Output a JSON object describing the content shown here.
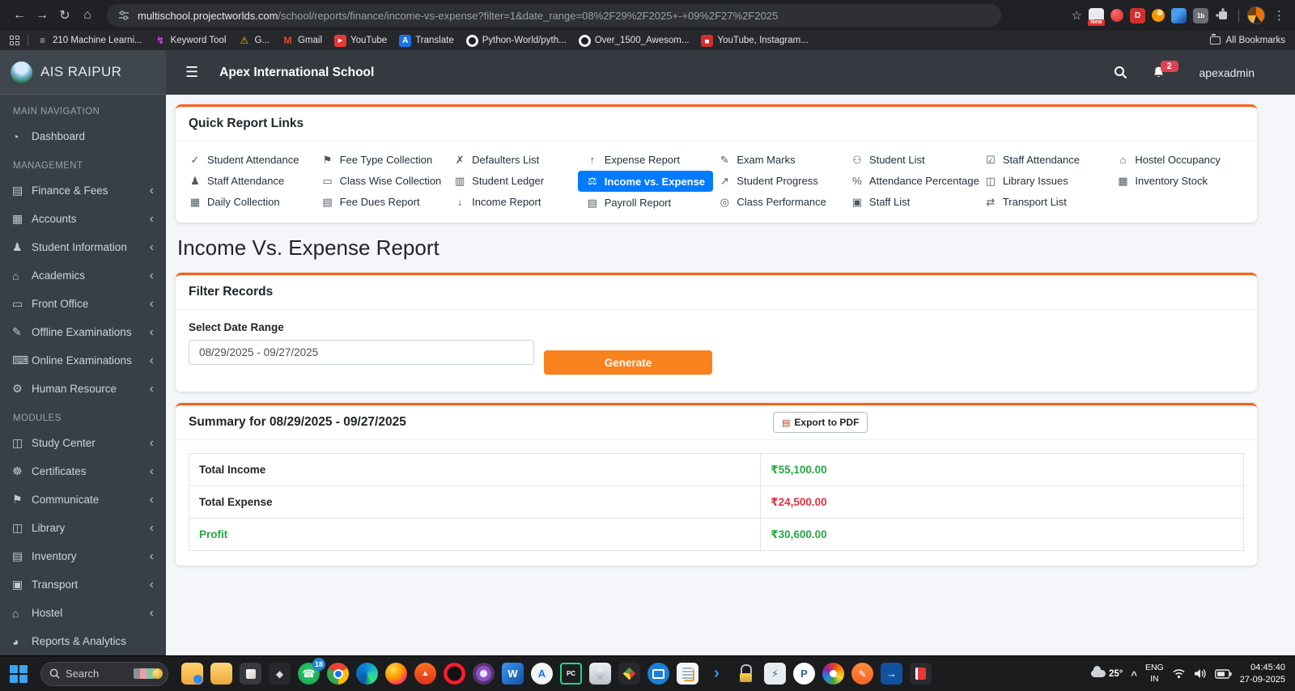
{
  "browser": {
    "back_icon": "←",
    "forward_icon": "→",
    "reload_icon": "↻",
    "home_icon": "⌂",
    "url_host": "multischool.projectworlds.com",
    "url_path": "/school/reports/finance/income-vs-expense?filter=1&date_range=08%2F29%2F2025+-+09%2F27%2F2025",
    "star_icon": "☆",
    "menu_icon": "⋮",
    "extensions": [
      {
        "name": "new-badge",
        "text": "New"
      },
      {
        "name": "red-dot"
      },
      {
        "name": "d-red",
        "text": "D"
      },
      {
        "name": "swirl-orange"
      },
      {
        "name": "f-blue"
      },
      {
        "name": "one-b",
        "text": "1b"
      },
      {
        "name": "puzzle"
      }
    ],
    "bookmarks": [
      {
        "label": "210 Machine Learni...",
        "icon": "doc"
      },
      {
        "label": "Keyword Tool",
        "icon": "keyword"
      },
      {
        "label": "G...",
        "icon": "warning"
      },
      {
        "label": "Gmail",
        "icon": "gmail"
      },
      {
        "label": "YouTube",
        "icon": "youtube"
      },
      {
        "label": "Translate",
        "icon": "translate"
      },
      {
        "label": "Python-World/pyth...",
        "icon": "github"
      },
      {
        "label": "Over_1500_Awesom...",
        "icon": "github"
      },
      {
        "label": "YouTube, Instagram...",
        "icon": "redchart"
      }
    ],
    "all_bookmarks_label": "All Bookmarks"
  },
  "app": {
    "brand": "AIS RAIPUR",
    "school_name": "Apex International School",
    "menu_icon": "☰",
    "username": "apexadmin",
    "notification_count": "2"
  },
  "sidebar": {
    "chevron_icon": "‹",
    "sections": [
      {
        "label": "MAIN NAVIGATION",
        "items": [
          {
            "label": "Dashboard",
            "icon": "dashboard",
            "chevron": false
          }
        ]
      },
      {
        "label": "MANAGEMENT",
        "items": [
          {
            "label": "Finance & Fees",
            "icon": "wallet",
            "chevron": true
          },
          {
            "label": "Accounts",
            "icon": "calculator",
            "chevron": true
          },
          {
            "label": "Student Information",
            "icon": "student",
            "chevron": true
          },
          {
            "label": "Academics",
            "icon": "academics",
            "chevron": true
          },
          {
            "label": "Front Office",
            "icon": "front-office",
            "chevron": true
          },
          {
            "label": "Offline Examinations",
            "icon": "offline-exam",
            "chevron": true
          },
          {
            "label": "Online Examinations",
            "icon": "online-exam",
            "chevron": true
          },
          {
            "label": "Human Resource",
            "icon": "human-resource",
            "chevron": true
          }
        ]
      },
      {
        "label": "MODULES",
        "items": [
          {
            "label": "Study Center",
            "icon": "study-center",
            "chevron": true
          },
          {
            "label": "Certificates",
            "icon": "certificates",
            "chevron": true
          },
          {
            "label": "Communicate",
            "icon": "communicate",
            "chevron": true
          },
          {
            "label": "Library",
            "icon": "library",
            "chevron": true
          },
          {
            "label": "Inventory",
            "icon": "inventory",
            "chevron": true
          },
          {
            "label": "Transport",
            "icon": "transport",
            "chevron": true
          },
          {
            "label": "Hostel",
            "icon": "hostel",
            "chevron": true
          },
          {
            "label": "Reports & Analytics",
            "icon": "reports",
            "chevron": false
          }
        ]
      }
    ]
  },
  "quick_links": {
    "title": "Quick Report Links",
    "columns": [
      [
        {
          "label": "Student Attendance",
          "icon": "user-check"
        },
        {
          "label": "Staff Attendance",
          "icon": "user-group"
        },
        {
          "label": "Daily Collection",
          "icon": "calendar"
        }
      ],
      [
        {
          "label": "Fee Type Collection",
          "icon": "tags"
        },
        {
          "label": "Class Wise Collection",
          "icon": "chalkboard"
        },
        {
          "label": "Fee Dues Report",
          "icon": "file-invoice"
        }
      ],
      [
        {
          "label": "Defaulters List",
          "icon": "user-times"
        },
        {
          "label": "Student Ledger",
          "icon": "ledger"
        },
        {
          "label": "Income Report",
          "icon": "arrow-down"
        }
      ],
      [
        {
          "label": "Expense Report",
          "icon": "arrow-up"
        },
        {
          "label": "Income vs. Expense",
          "icon": "balance-scale",
          "active": true
        },
        {
          "label": "Payroll Report",
          "icon": "payroll"
        }
      ],
      [
        {
          "label": "Exam Marks",
          "icon": "exam"
        },
        {
          "label": "Student Progress",
          "icon": "chart-line"
        },
        {
          "label": "Class Performance",
          "icon": "award"
        }
      ],
      [
        {
          "label": "Student List",
          "icon": "users"
        },
        {
          "label": "Attendance Percentage",
          "icon": "percent"
        },
        {
          "label": "Staff List",
          "icon": "id-card"
        }
      ],
      [
        {
          "label": "Staff Attendance",
          "icon": "calendar-check"
        },
        {
          "label": "Library Issues",
          "icon": "book-open"
        },
        {
          "label": "Transport List",
          "icon": "route"
        }
      ],
      [
        {
          "label": "Hostel Occupancy",
          "icon": "bed"
        },
        {
          "label": "Inventory Stock",
          "icon": "boxes"
        }
      ]
    ]
  },
  "page": {
    "title": "Income Vs. Expense Report"
  },
  "filter": {
    "card_title": "Filter Records",
    "date_label": "Select Date Range",
    "date_value": "08/29/2025 - 09/27/2025",
    "generate_label": "Generate"
  },
  "summary": {
    "title": "Summary for 08/29/2025 - 09/27/2025",
    "export_label": "Export to PDF",
    "pdf_icon": "▤",
    "rows": [
      {
        "label": "Total Income",
        "value": "₹55,100.00",
        "value_color": "green"
      },
      {
        "label": "Total Expense",
        "value": "₹24,500.00",
        "value_color": "red"
      },
      {
        "label": "Profit",
        "value": "₹30,600.00",
        "value_color": "green",
        "label_color": "green"
      }
    ]
  },
  "colors": {
    "accent_orange": "#f7821e",
    "card_top_border": "#ff5e14",
    "active_blue": "#007bff",
    "income_green": "#28a745",
    "expense_red": "#dc3545"
  },
  "taskbar": {
    "search_label": "Search",
    "icons": [
      {
        "name": "folder-sync"
      },
      {
        "name": "file-explorer"
      },
      {
        "name": "photos"
      },
      {
        "name": "unity",
        "glyph": "◆"
      },
      {
        "name": "whatsapp",
        "glyph": "☎",
        "badge": "18"
      },
      {
        "name": "chrome"
      },
      {
        "name": "edge"
      },
      {
        "name": "firefox"
      },
      {
        "name": "brave",
        "glyph": "▲"
      },
      {
        "name": "opera"
      },
      {
        "name": "tor"
      },
      {
        "name": "word",
        "glyph": "W"
      },
      {
        "name": "app-store",
        "glyph": "A"
      },
      {
        "name": "pycharm",
        "glyph": "PC"
      },
      {
        "name": "vbox-cube"
      },
      {
        "name": "prism-cube"
      },
      {
        "name": "remote-desktop"
      },
      {
        "name": "notes"
      },
      {
        "name": "vscode",
        "glyph": "›"
      },
      {
        "name": "lock"
      },
      {
        "name": "device-manager",
        "glyph": "⚡"
      },
      {
        "name": "postgresql",
        "glyph": "P"
      },
      {
        "name": "color-wheel"
      },
      {
        "name": "pencil",
        "glyph": "✎"
      },
      {
        "name": "share-export",
        "glyph": "→"
      },
      {
        "name": "movie"
      }
    ],
    "weather_temp": "25°",
    "tray_chevron": "^",
    "lang_line1": "ENG",
    "lang_line2": "IN",
    "time": "04:45:40",
    "date": "27-09-2025"
  }
}
